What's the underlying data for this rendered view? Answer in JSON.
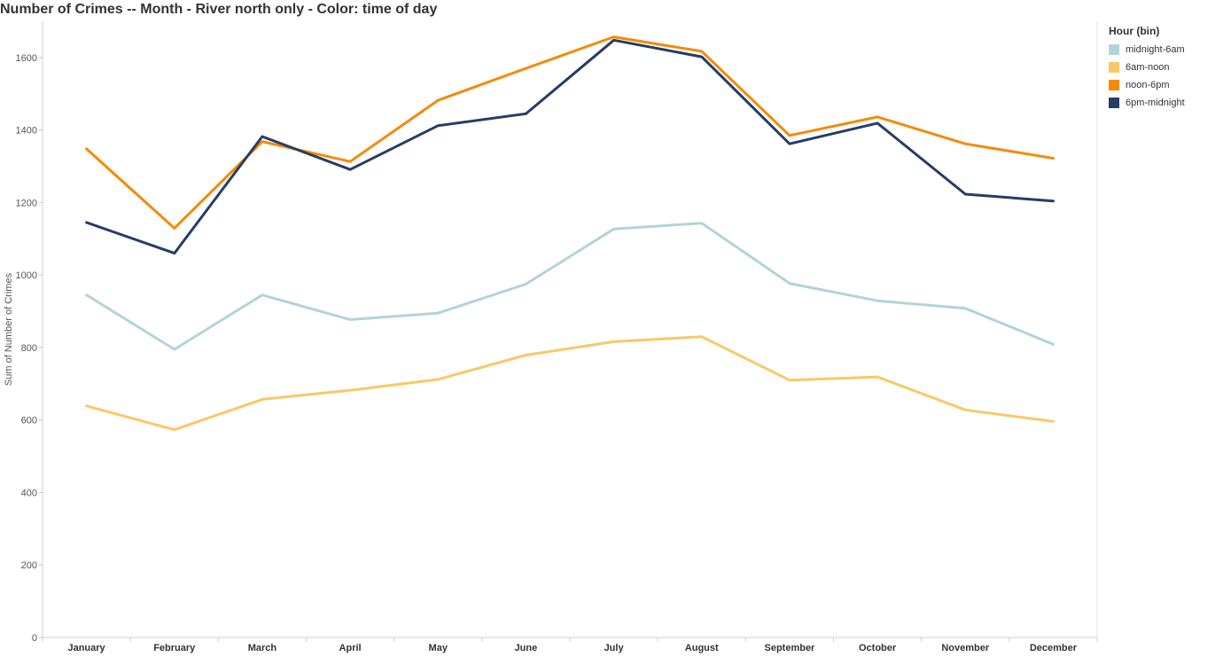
{
  "header": {
    "title": "Number of Crimes -- Month - River north only - Color: time of day"
  },
  "legend": {
    "title": "Hour (bin)",
    "items": [
      {
        "label": "midnight-6am",
        "color": "#b3d3da"
      },
      {
        "label": "6am-noon",
        "color": "#f9c866"
      },
      {
        "label": "noon-6pm",
        "color": "#f58a07"
      },
      {
        "label": "6pm-midnight",
        "color": "#253d64"
      }
    ]
  },
  "chart_data": {
    "type": "line",
    "title": "Number of Crimes -- Month - River north only - Color: time of day",
    "xlabel": "",
    "ylabel": "Sum of Number of Crimes",
    "categories": [
      "January",
      "February",
      "March",
      "April",
      "May",
      "June",
      "July",
      "August",
      "September",
      "October",
      "November",
      "December"
    ],
    "ylim": [
      0,
      1700
    ],
    "yticks": [
      0,
      200,
      400,
      600,
      800,
      1000,
      1200,
      1400,
      1600
    ],
    "grid": false,
    "legend_position": "right",
    "series": [
      {
        "name": "midnight-6am",
        "color": "#b3d3da",
        "values": [
          945,
          795,
          945,
          877,
          895,
          975,
          1127,
          1143,
          977,
          929,
          908,
          809
        ]
      },
      {
        "name": "6am-noon",
        "color": "#f9c866",
        "values": [
          639,
          573,
          657,
          682,
          712,
          779,
          816,
          830,
          710,
          719,
          628,
          596
        ]
      },
      {
        "name": "noon-6pm",
        "color": "#f58a07",
        "values": [
          1348,
          1129,
          1368,
          1313,
          1482,
          1570,
          1657,
          1617,
          1385,
          1436,
          1362,
          1322
        ]
      },
      {
        "name": "6pm-midnight",
        "color": "#253d64",
        "values": [
          1145,
          1060,
          1382,
          1291,
          1412,
          1445,
          1648,
          1602,
          1362,
          1419,
          1223,
          1204
        ]
      }
    ]
  }
}
